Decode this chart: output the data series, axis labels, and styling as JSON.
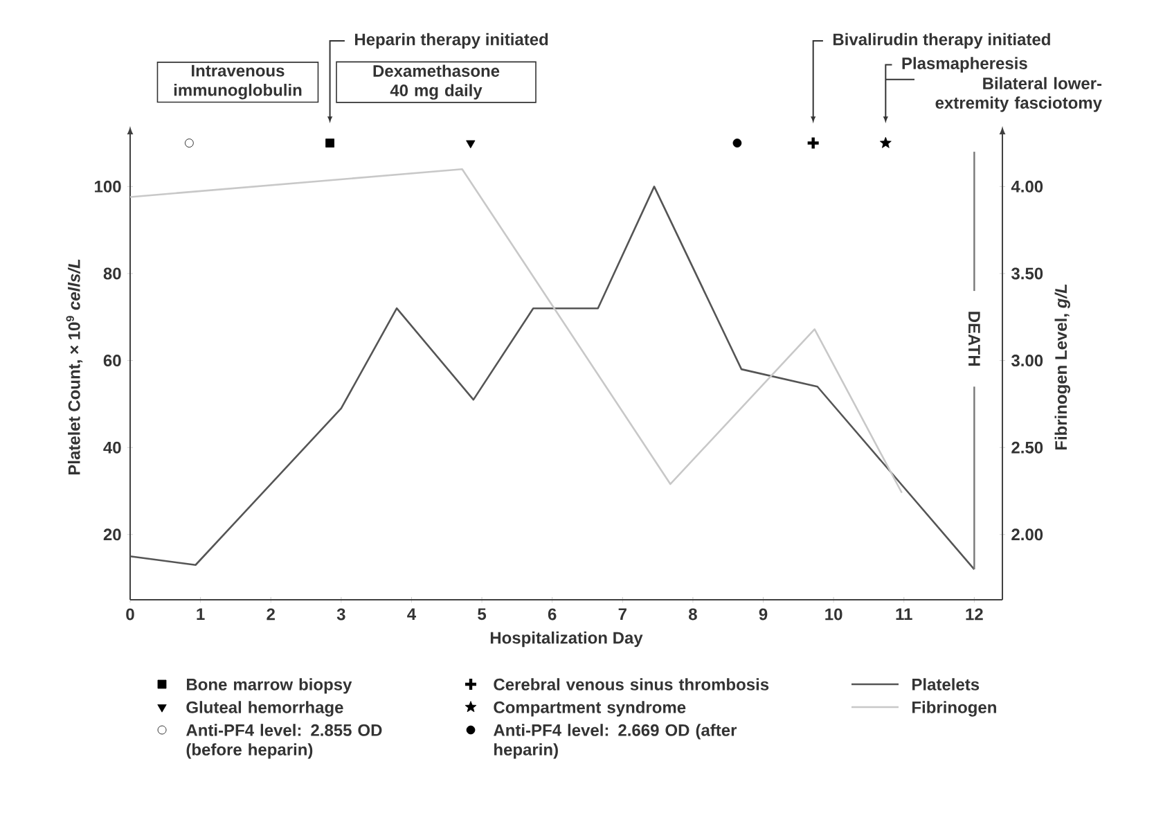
{
  "chart_data": {
    "type": "line",
    "xlabel": "Hospitalization Day",
    "ylabel": "Platelet Count, × 10$^{9}$ *cells/L*",
    "y2label": "Fibrinogen Level, *g/L*",
    "xlim": [
      0,
      12.4
    ],
    "xticks": [
      0,
      1,
      2,
      3,
      4,
      5,
      6,
      7,
      8,
      9,
      10,
      11,
      12
    ],
    "ylim": [
      5,
      112
    ],
    "yticks": [
      20,
      40,
      60,
      80,
      100
    ],
    "y2lim": [
      1.625,
      4.3
    ],
    "y2ticks": [
      {
        "value": 2,
        "label": "2.00"
      },
      {
        "value": 2.5,
        "label": "2.50"
      },
      {
        "value": 3,
        "label": "3.00"
      },
      {
        "value": 3.5,
        "label": "3.50"
      },
      {
        "value": 4,
        "label": "4.00"
      }
    ],
    "legend": "bottom",
    "grid": false,
    "series": [
      {
        "name": "Bone marrow biopsy",
        "type": "scatter",
        "marker": "square",
        "color": "#000000",
        "x": [
          2.84
        ],
        "values": [
          110
        ]
      },
      {
        "name": "Gluteal hemorrhage",
        "type": "scatter",
        "marker": "triangle",
        "color": "#000000",
        "x": [
          4.84
        ],
        "values": [
          110
        ]
      },
      {
        "name": "Anti-PF4 level: 2.855 OD (before heparin)",
        "type": "scatter",
        "marker": "circle",
        "color": "#ffffff",
        "x": [
          0.84
        ],
        "values": [
          110
        ]
      },
      {
        "name": "Cerebral venous sinus thrombosis",
        "type": "scatter",
        "marker": "cross",
        "color": "#000000",
        "x": [
          9.71
        ],
        "values": [
          110
        ]
      },
      {
        "name": "Compartment syndrome",
        "type": "scatter",
        "marker": "star",
        "color": "#000000",
        "x": [
          10.74
        ],
        "values": [
          110
        ]
      },
      {
        "name": "Anti-PF4 level: 2.669 OD (after heparin)",
        "type": "scatter",
        "marker": "circle",
        "color": "#000000",
        "x": [
          8.63
        ],
        "values": [
          110
        ]
      },
      {
        "name": "Platelets",
        "marker": "none",
        "line_style": "solid",
        "color": "#555555",
        "x": [
          0,
          0.93,
          3,
          3.79,
          4.88,
          5.73,
          6.65,
          7.45,
          8.69,
          9.77,
          12
        ],
        "values": [
          15,
          13,
          49,
          72,
          51,
          72,
          72,
          100,
          58,
          54,
          12
        ]
      },
      {
        "name": "Fibrinogen",
        "marker": "none",
        "line_style": "solid",
        "axis": "y2",
        "color": "#c8c8c8",
        "x": [
          0,
          4.72,
          7.68,
          9.73,
          10.97
        ],
        "values": [
          3.94,
          4.1,
          2.29,
          3.18,
          2.24
        ]
      }
    ],
    "ref_lines": [
      {
        "axis": "x",
        "value": 12,
        "label": "DEATH",
        "color": "#777777"
      }
    ],
    "annotations": [
      "Intravenous immunoglobulin",
      "Heparin therapy initiated",
      "Dexamethasone 40 mg daily",
      "Bivalirudin therapy initiated",
      "Plasmapheresis",
      "Bilateral lower-extremity fasciotomy"
    ]
  }
}
